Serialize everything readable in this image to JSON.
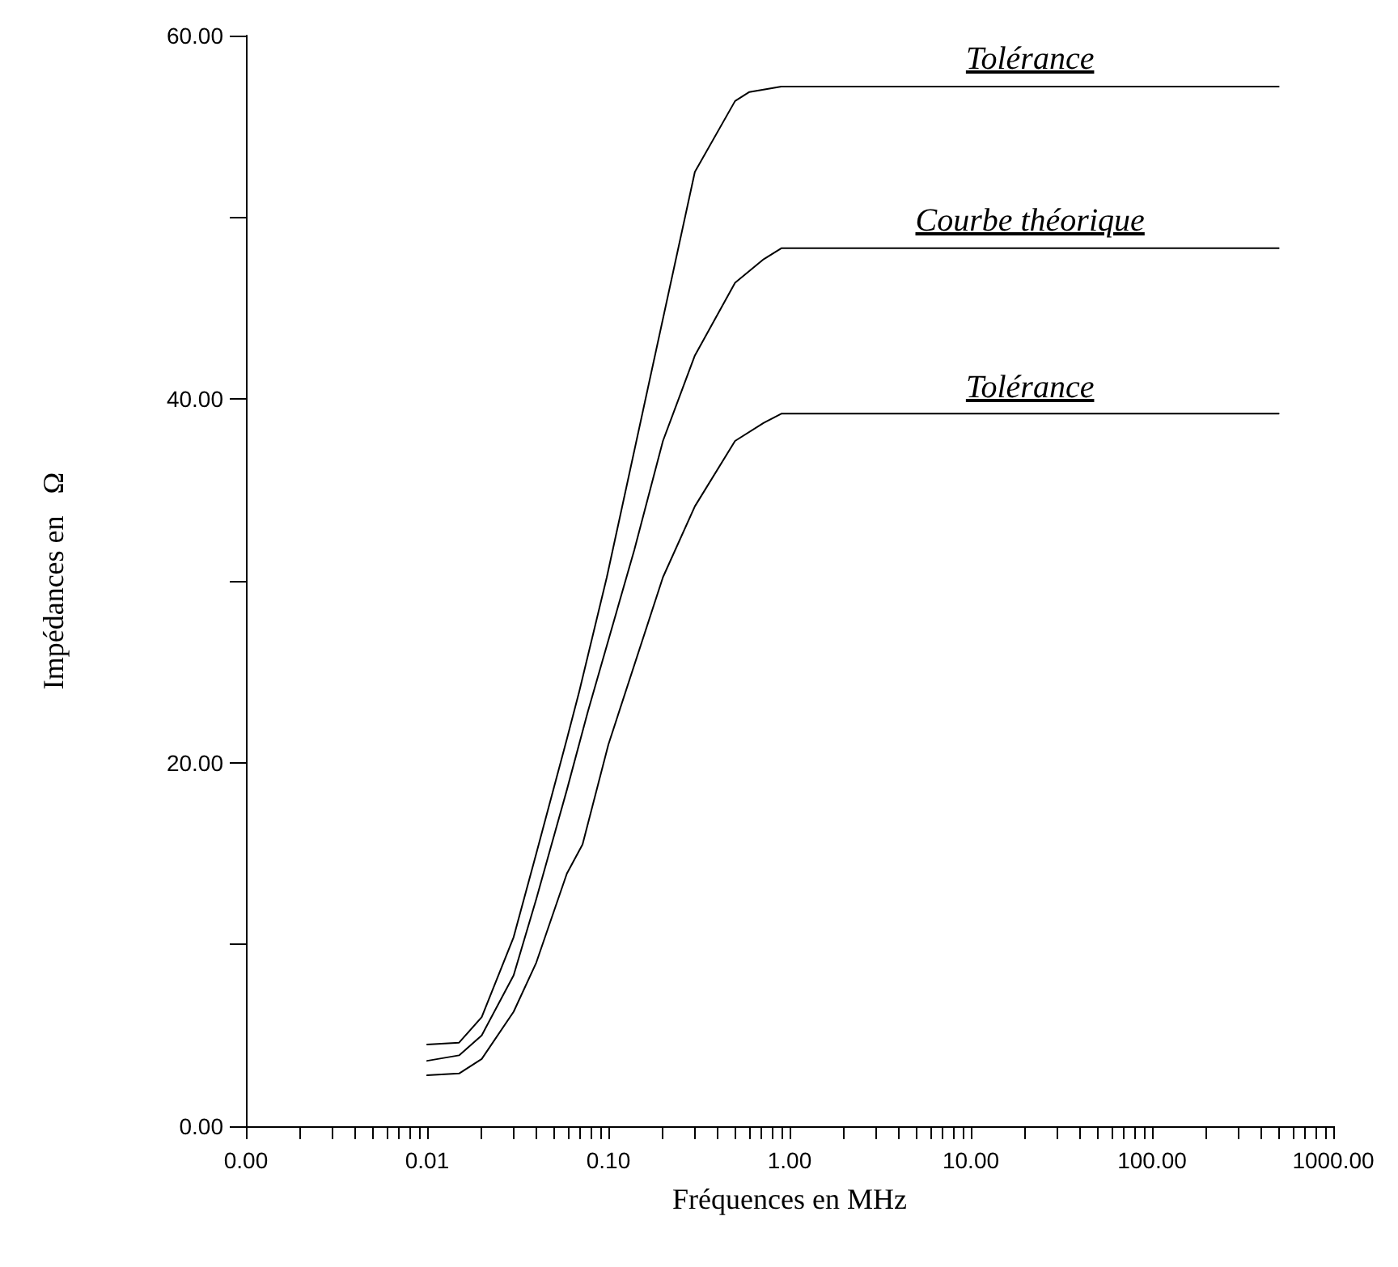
{
  "chart_data": {
    "type": "line",
    "xlabel": "Fréquences en MHz",
    "ylabel": "Impédances en   Ω",
    "log": "x",
    "grid": false,
    "marker": "none",
    "line_style": "solid",
    "xlim": [
      0.001,
      1000
    ],
    "ylim": [
      0,
      60
    ],
    "xticks": [
      {
        "value": 0.001,
        "label": "0.00"
      },
      {
        "value": 0.002,
        "label": null
      },
      {
        "value": 0.003,
        "label": null
      },
      {
        "value": 0.004,
        "label": null
      },
      {
        "value": 0.005,
        "label": null
      },
      {
        "value": 0.006,
        "label": null
      },
      {
        "value": 0.007,
        "label": null
      },
      {
        "value": 0.008,
        "label": null
      },
      {
        "value": 0.009,
        "label": null
      },
      {
        "value": 0.01,
        "label": "0.01"
      },
      {
        "value": 0.02,
        "label": null
      },
      {
        "value": 0.03,
        "label": null
      },
      {
        "value": 0.04,
        "label": null
      },
      {
        "value": 0.05,
        "label": null
      },
      {
        "value": 0.06,
        "label": null
      },
      {
        "value": 0.07,
        "label": null
      },
      {
        "value": 0.08,
        "label": null
      },
      {
        "value": 0.09,
        "label": null
      },
      {
        "value": 0.1,
        "label": "0.10"
      },
      {
        "value": 0.2,
        "label": null
      },
      {
        "value": 0.3,
        "label": null
      },
      {
        "value": 0.4,
        "label": null
      },
      {
        "value": 0.5,
        "label": null
      },
      {
        "value": 0.6,
        "label": null
      },
      {
        "value": 0.7,
        "label": null
      },
      {
        "value": 0.8,
        "label": null
      },
      {
        "value": 0.9,
        "label": null
      },
      {
        "value": 1,
        "label": "1.00"
      },
      {
        "value": 2,
        "label": null
      },
      {
        "value": 3,
        "label": null
      },
      {
        "value": 4,
        "label": null
      },
      {
        "value": 5,
        "label": null
      },
      {
        "value": 6,
        "label": null
      },
      {
        "value": 7,
        "label": null
      },
      {
        "value": 8,
        "label": null
      },
      {
        "value": 9,
        "label": null
      },
      {
        "value": 10,
        "label": "10.00"
      },
      {
        "value": 20,
        "label": null
      },
      {
        "value": 30,
        "label": null
      },
      {
        "value": 40,
        "label": null
      },
      {
        "value": 50,
        "label": null
      },
      {
        "value": 60,
        "label": null
      },
      {
        "value": 70,
        "label": null
      },
      {
        "value": 80,
        "label": null
      },
      {
        "value": 90,
        "label": null
      },
      {
        "value": 100,
        "label": "100.00"
      },
      {
        "value": 200,
        "label": null
      },
      {
        "value": 300,
        "label": null
      },
      {
        "value": 400,
        "label": null
      },
      {
        "value": 500,
        "label": null
      },
      {
        "value": 600,
        "label": null
      },
      {
        "value": 700,
        "label": null
      },
      {
        "value": 800,
        "label": null
      },
      {
        "value": 900,
        "label": null
      },
      {
        "value": 1000,
        "label": "1000.00"
      }
    ],
    "yticks": [
      {
        "value": 0,
        "label": "0.00"
      },
      {
        "value": 10,
        "label": null
      },
      {
        "value": 20,
        "label": "20.00"
      },
      {
        "value": 30,
        "label": null
      },
      {
        "value": 40,
        "label": "40.00"
      },
      {
        "value": 50,
        "label": null
      },
      {
        "value": 60,
        "label": "60.00"
      }
    ],
    "series": [
      {
        "color": "#000000",
        "x": [
          0.01,
          0.015,
          0.02,
          0.03,
          0.04,
          0.059,
          0.069,
          0.098,
          0.3,
          0.5,
          0.6,
          0.9,
          500
        ],
        "values": [
          4.5,
          4.6,
          6.0,
          10.4,
          15.0,
          21.3,
          23.9,
          30.2,
          52.5,
          56.4,
          56.9,
          57.2,
          57.2
        ]
      },
      {
        "color": "#000000",
        "x": [
          0.01,
          0.015,
          0.02,
          0.03,
          0.04,
          0.059,
          0.077,
          0.139,
          0.2,
          0.3,
          0.5,
          0.72,
          0.9,
          500
        ],
        "values": [
          3.6,
          3.9,
          5.0,
          8.3,
          12.5,
          18.5,
          22.8,
          31.7,
          37.7,
          42.4,
          46.4,
          47.7,
          48.3,
          48.3
        ]
      },
      {
        "color": "#000000",
        "x": [
          0.01,
          0.015,
          0.02,
          0.03,
          0.04,
          0.059,
          0.072,
          0.1,
          0.2,
          0.3,
          0.5,
          0.72,
          0.9,
          500
        ],
        "values": [
          2.8,
          2.9,
          3.7,
          6.3,
          9.0,
          13.9,
          15.5,
          21.0,
          30.2,
          34.1,
          37.7,
          38.7,
          39.2,
          39.2
        ]
      }
    ],
    "annotations": [
      "Tolérance",
      "Courbe théorique",
      "Tolérance"
    ]
  }
}
